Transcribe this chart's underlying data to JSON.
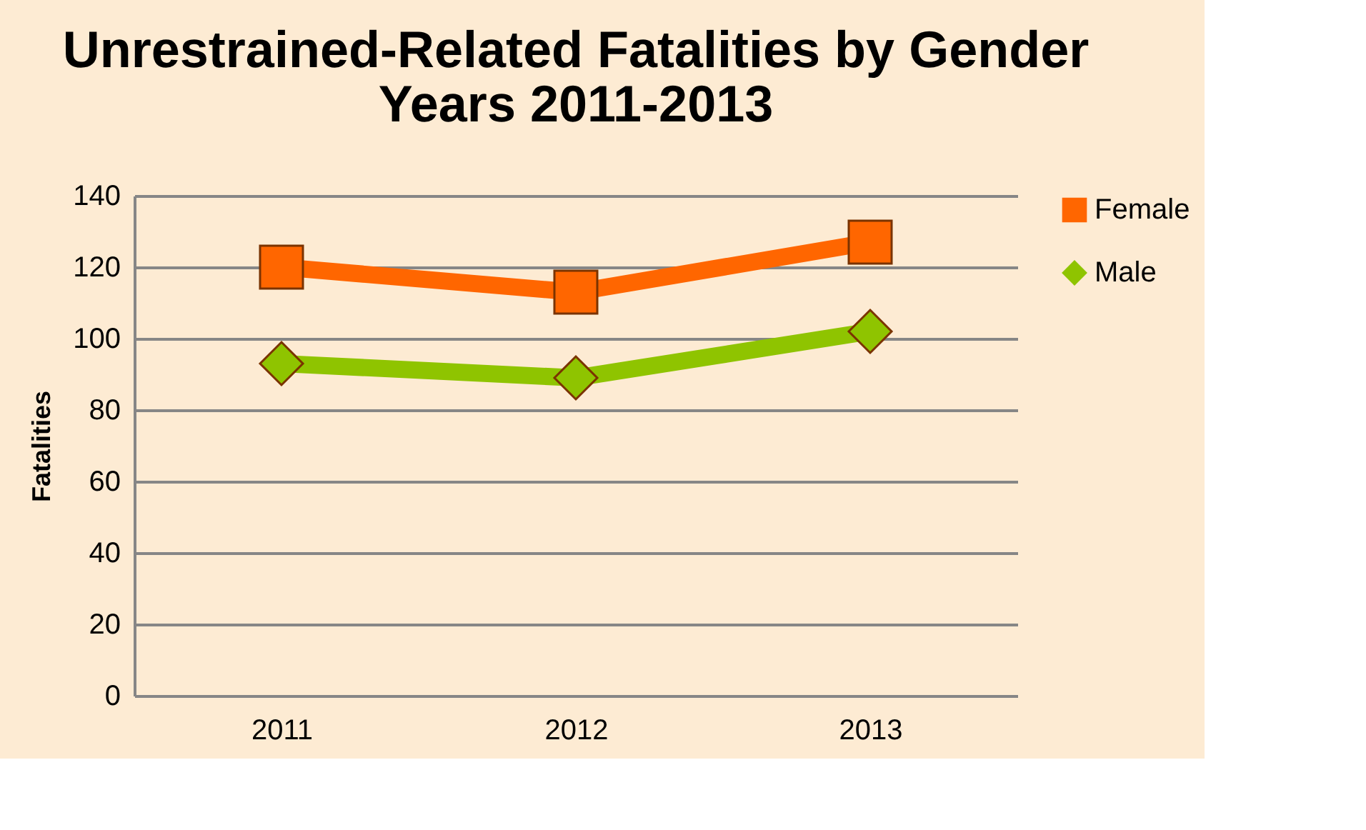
{
  "chart_data": {
    "type": "line",
    "title": [
      "Unrestrained-Related Fatalities by Gender",
      "Years 2011-2013"
    ],
    "ylabel": "Fatalities",
    "categories": [
      "2011",
      "2012",
      "2013"
    ],
    "series": [
      {
        "name": "Female",
        "color": "#ff6600",
        "values": [
          120,
          113,
          127
        ],
        "marker": "square"
      },
      {
        "name": "Male",
        "color": "#8fc400",
        "values": [
          93,
          89,
          102
        ],
        "marker": "diamond"
      }
    ],
    "ylim": [
      0,
      140
    ],
    "yticks": [
      0,
      20,
      40,
      60,
      80,
      100,
      120,
      140
    ],
    "grid": "y",
    "legend": "right"
  }
}
